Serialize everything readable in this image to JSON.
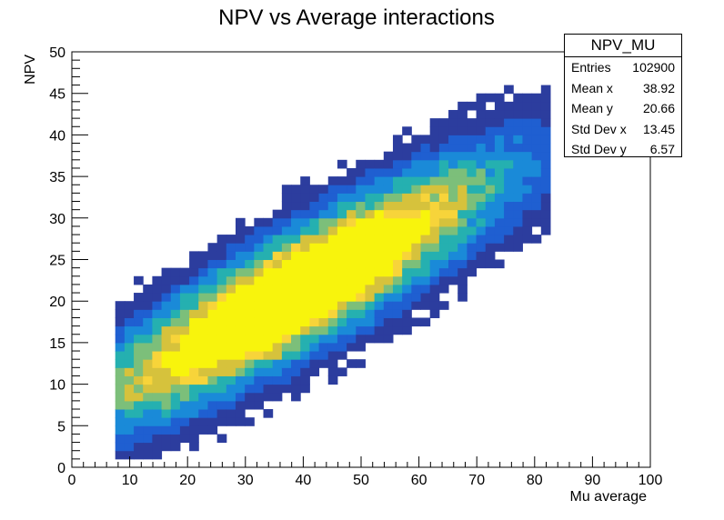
{
  "chart_data": {
    "type": "heatmap",
    "title": "NPV vs Average interactions",
    "xlabel": "Mu average",
    "ylabel": "NPV",
    "xlim": [
      0,
      100
    ],
    "ylim": [
      0,
      50
    ],
    "xticks": [
      "0",
      "10",
      "20",
      "30",
      "40",
      "50",
      "60",
      "70",
      "80",
      "90",
      "100"
    ],
    "yticks": [
      "0",
      "5",
      "10",
      "15",
      "20",
      "25",
      "30",
      "35",
      "40",
      "45",
      "50"
    ],
    "grid": false,
    "stats": {
      "name": "NPV_MU",
      "rows": [
        {
          "label": "Entries",
          "value": "102900"
        },
        {
          "label": "Mean x",
          "value": "38.92"
        },
        {
          "label": "Mean y",
          "value": "20.66"
        },
        {
          "label": "Std Dev x",
          "value": "13.45"
        },
        {
          "label": "Std Dev y",
          "value": "6.57"
        }
      ]
    },
    "colormap": [
      "#2c3d9e",
      "#1f5fd1",
      "#1a8ad8",
      "#25b0b0",
      "#7cbf7a",
      "#d6c23c",
      "#f7d43a",
      "#f8f40c"
    ],
    "bins": {
      "x_width": 1.6,
      "y_width": 1
    },
    "density_model": {
      "ridge_slope": 0.38,
      "ridge_intercept": 6.4,
      "ridge_sigma": 3.9,
      "x_mean": 38.92,
      "x_sd": 14.0,
      "x_min": 7.5,
      "x_max": 82,
      "y_min": 1,
      "y_max": 49
    }
  }
}
